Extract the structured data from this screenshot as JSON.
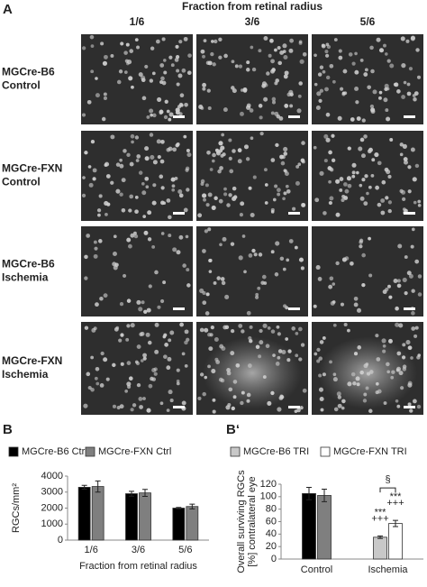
{
  "panel_a": {
    "label": "A",
    "title": "Fraction from retinal radius",
    "columns": [
      "1/6",
      "3/6",
      "5/6"
    ],
    "rows": [
      [
        "MGCre-B6",
        "Control"
      ],
      [
        "MGCre-FXN",
        "Control"
      ],
      [
        "MGCre-B6",
        "Ischemia"
      ],
      [
        "MGCre-FXN",
        "Ischemia"
      ]
    ]
  },
  "chart_data": [
    {
      "type": "bar",
      "panel_label": "B",
      "categories": [
        "1/6",
        "3/6",
        "5/6"
      ],
      "series": [
        {
          "name": "MGCre-B6 Ctrl",
          "color": "#000000",
          "values": [
            3300,
            2900,
            2000
          ],
          "errors": [
            120,
            150,
            40
          ]
        },
        {
          "name": "MGCre-FXN Ctrl",
          "color": "#7f7f7f",
          "values": [
            3350,
            2950,
            2100
          ],
          "errors": [
            350,
            220,
            150
          ]
        }
      ],
      "ylim": [
        0,
        4000
      ],
      "yticks": [
        0,
        1000,
        2000,
        3000,
        4000
      ],
      "ylabel": [
        "RGCs/mm²"
      ],
      "xlabel": "Fraction from retinal radius"
    },
    {
      "type": "bar",
      "panel_label": "B‘",
      "categories": [
        "Control",
        "Ischemia"
      ],
      "series": [
        {
          "color": "#000000",
          "values": [
            105,
            null
          ],
          "errors": [
            10,
            null
          ]
        },
        {
          "color": "#7f7f7f",
          "values": [
            102,
            null
          ],
          "errors": [
            10,
            null
          ]
        },
        {
          "name": "MGCre-B6 TRI",
          "color": "#c8c8c8",
          "values": [
            null,
            35
          ],
          "errors": [
            null,
            2
          ],
          "annotations": [
            null,
            [
              "+++",
              "***"
            ]
          ]
        },
        {
          "name": "MGCre-FXN TRI",
          "color": "#ffffff",
          "values": [
            null,
            57
          ],
          "errors": [
            null,
            5
          ],
          "annotations": [
            null,
            [
              "+++",
              "***"
            ]
          ]
        }
      ],
      "ylim": [
        0,
        120
      ],
      "yticks": [
        0,
        20,
        40,
        60,
        80,
        100,
        120
      ],
      "ylabel": [
        "Overall surviving RGCs",
        "[%] contralateral eye"
      ],
      "bracket_label": "§"
    }
  ]
}
